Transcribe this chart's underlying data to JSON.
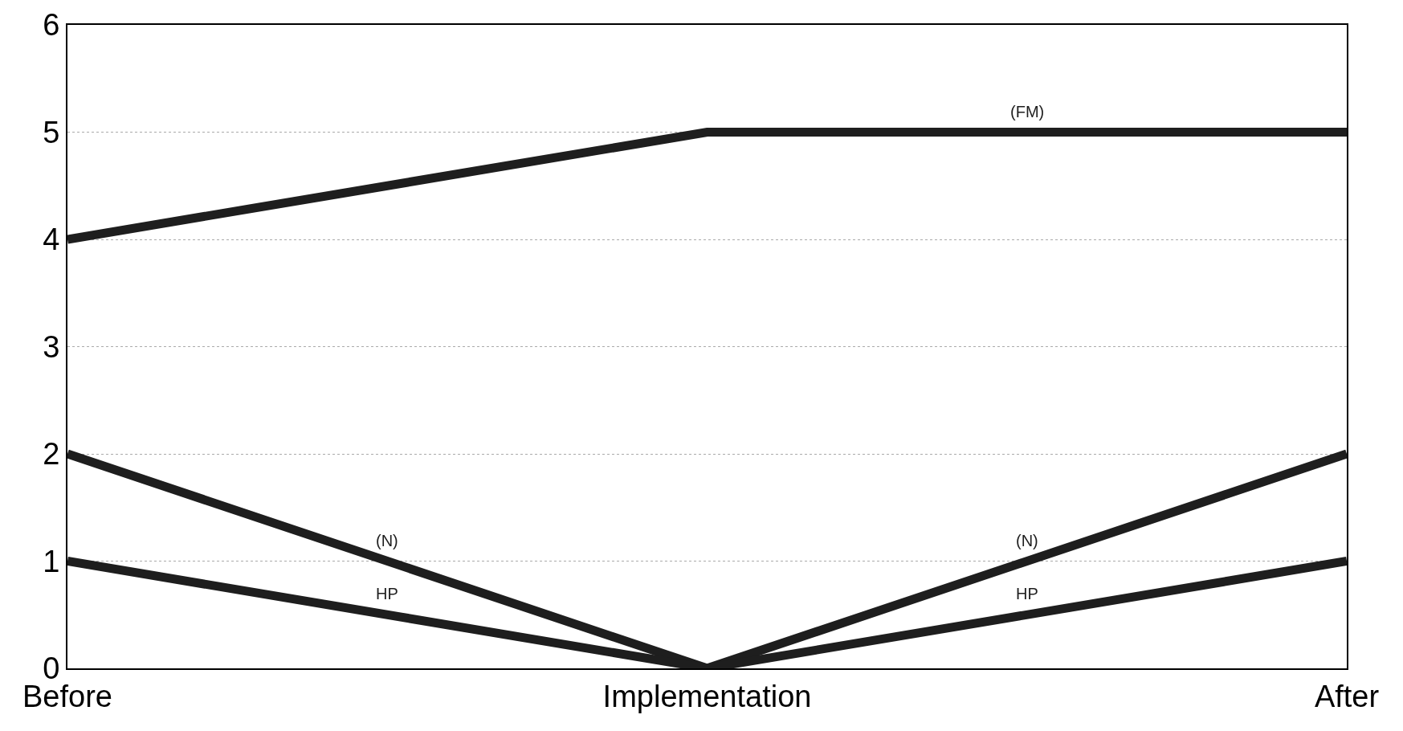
{
  "chart_data": {
    "type": "line",
    "categories": [
      "Before",
      "Implementation",
      "After"
    ],
    "series": [
      {
        "name": "(FM)",
        "color": "#1e1e1e",
        "values": [
          4,
          5,
          5
        ]
      },
      {
        "name": "(N)",
        "color": "#1e1e1e",
        "values": [
          2,
          0,
          2
        ]
      },
      {
        "name": "HP",
        "color": "#1e1e1e",
        "values": [
          1,
          0,
          1
        ]
      }
    ],
    "ylim": [
      0,
      6
    ],
    "yticks": [
      0,
      1,
      2,
      3,
      4,
      5,
      6
    ],
    "grid": "y",
    "legend": false,
    "marker": "none",
    "line_style": "solid"
  }
}
